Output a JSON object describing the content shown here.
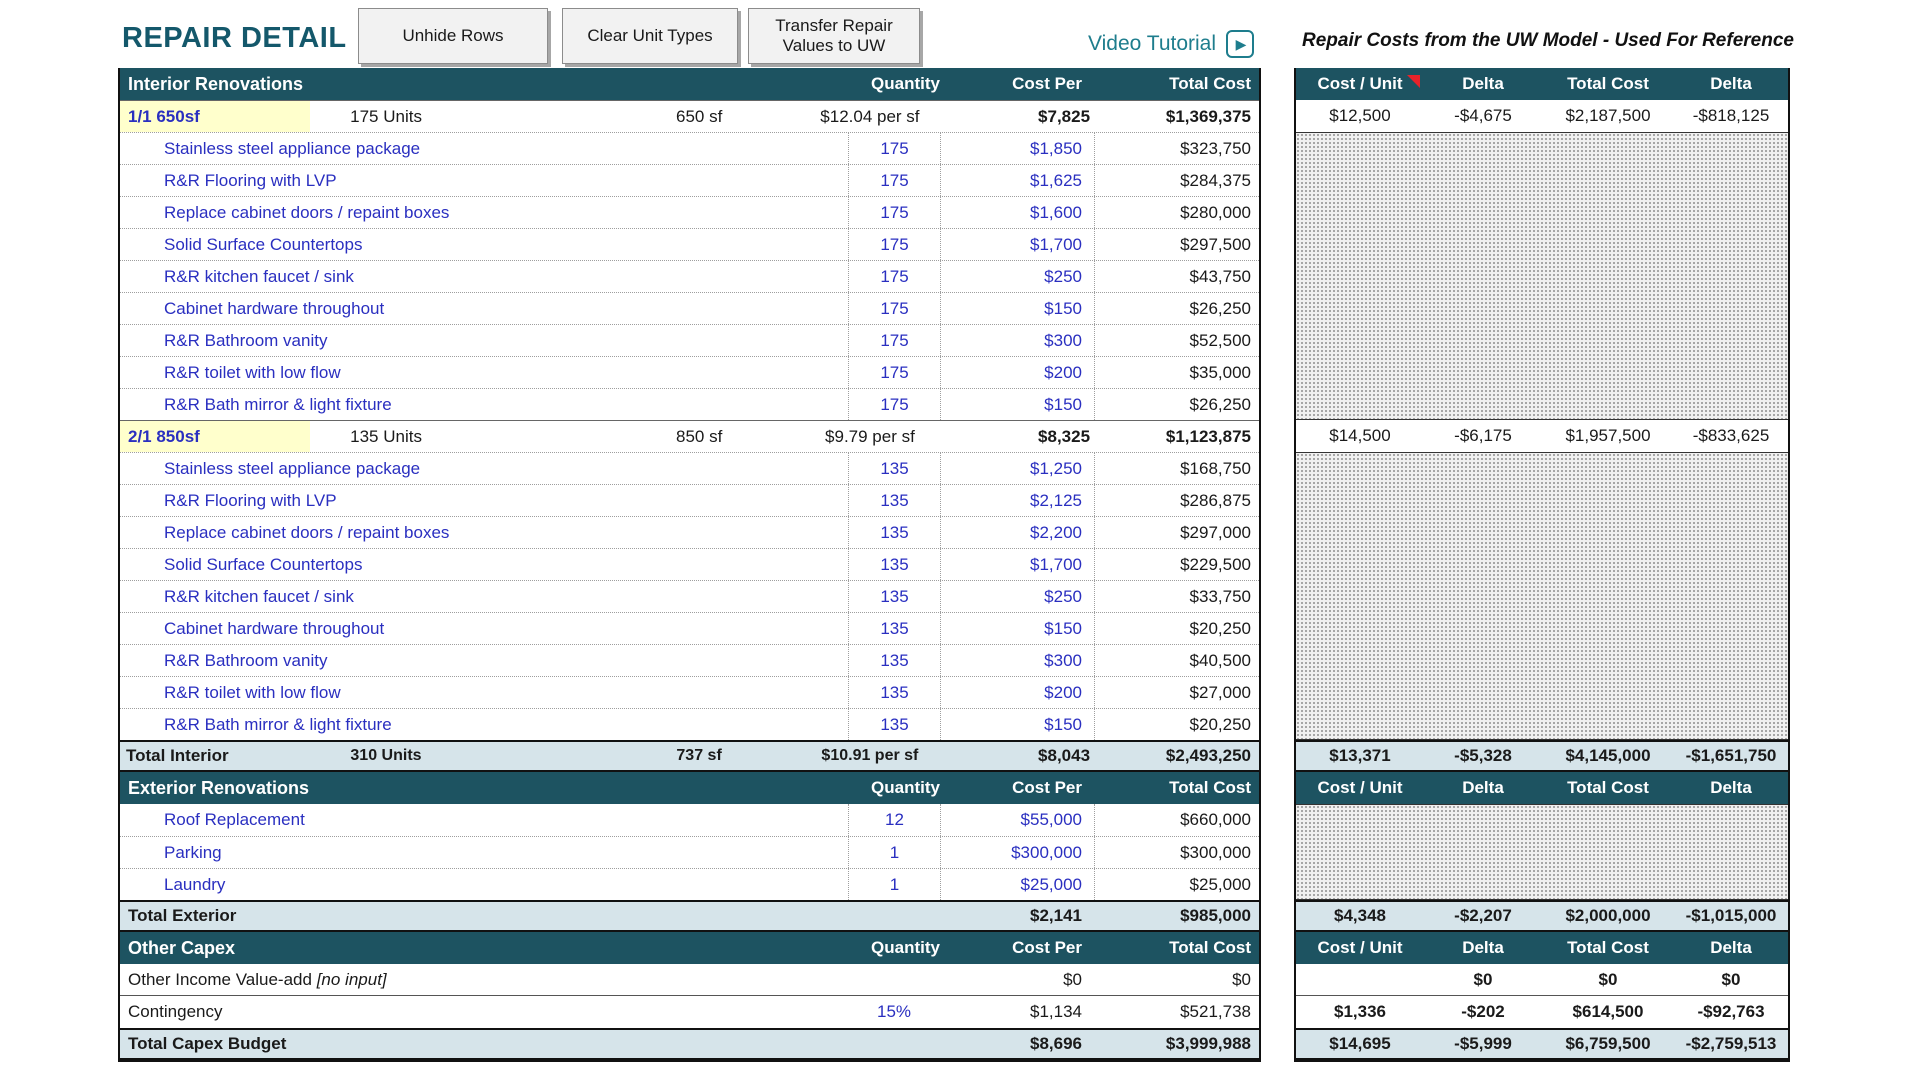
{
  "title": "REPAIR DETAIL",
  "buttons": {
    "unhide": "Unhide Rows",
    "clear": "Clear Unit Types",
    "transfer": "Transfer Repair Values to UW"
  },
  "video_tutorial": {
    "label": "Video Tutorial",
    "play_glyph": "▶"
  },
  "reference_note": "Repair Costs from the UW Model - Used For Reference",
  "ref_columns": {
    "cost_unit": "Cost / Unit",
    "delta": "Delta",
    "total_cost": "Total Cost",
    "delta2": "Delta"
  },
  "interior": {
    "header": {
      "title": "Interior Renovations",
      "quantity": "Quantity",
      "cost_per": "Cost Per",
      "total_cost": "Total Cost"
    },
    "groups": [
      {
        "name": "1/1 650sf",
        "units": "175 Units",
        "sf": "650 sf",
        "per_sf": "$12.04 per sf",
        "cost_per": "$7,825",
        "total_cost": "$1,369,375",
        "ref": {
          "cost_unit": "$12,500",
          "delta": "-$4,675",
          "total_cost": "$2,187,500",
          "delta2": "-$818,125"
        },
        "items": [
          {
            "label": "Stainless steel appliance package",
            "qty": "175",
            "cost_per": "$1,850",
            "total": "$323,750"
          },
          {
            "label": "R&R Flooring with LVP",
            "qty": "175",
            "cost_per": "$1,625",
            "total": "$284,375"
          },
          {
            "label": "Replace cabinet doors / repaint boxes",
            "qty": "175",
            "cost_per": "$1,600",
            "total": "$280,000"
          },
          {
            "label": "Solid Surface Countertops",
            "qty": "175",
            "cost_per": "$1,700",
            "total": "$297,500"
          },
          {
            "label": "R&R kitchen faucet / sink",
            "qty": "175",
            "cost_per": "$250",
            "total": "$43,750"
          },
          {
            "label": "Cabinet hardware throughout",
            "qty": "175",
            "cost_per": "$150",
            "total": "$26,250"
          },
          {
            "label": "R&R Bathroom vanity",
            "qty": "175",
            "cost_per": "$300",
            "total": "$52,500"
          },
          {
            "label": "R&R toilet with low flow",
            "qty": "175",
            "cost_per": "$200",
            "total": "$35,000"
          },
          {
            "label": "R&R Bath mirror & light fixture",
            "qty": "175",
            "cost_per": "$150",
            "total": "$26,250"
          }
        ]
      },
      {
        "name": "2/1 850sf",
        "units": "135 Units",
        "sf": "850 sf",
        "per_sf": "$9.79 per sf",
        "cost_per": "$8,325",
        "total_cost": "$1,123,875",
        "ref": {
          "cost_unit": "$14,500",
          "delta": "-$6,175",
          "total_cost": "$1,957,500",
          "delta2": "-$833,625"
        },
        "items": [
          {
            "label": "Stainless steel appliance package",
            "qty": "135",
            "cost_per": "$1,250",
            "total": "$168,750"
          },
          {
            "label": "R&R Flooring with LVP",
            "qty": "135",
            "cost_per": "$2,125",
            "total": "$286,875"
          },
          {
            "label": "Replace cabinet doors / repaint boxes",
            "qty": "135",
            "cost_per": "$2,200",
            "total": "$297,000"
          },
          {
            "label": "Solid Surface Countertops",
            "qty": "135",
            "cost_per": "$1,700",
            "total": "$229,500"
          },
          {
            "label": "R&R kitchen faucet / sink",
            "qty": "135",
            "cost_per": "$250",
            "total": "$33,750"
          },
          {
            "label": "Cabinet hardware throughout",
            "qty": "135",
            "cost_per": "$150",
            "total": "$20,250"
          },
          {
            "label": "R&R Bathroom vanity",
            "qty": "135",
            "cost_per": "$300",
            "total": "$40,500"
          },
          {
            "label": "R&R toilet with low flow",
            "qty": "135",
            "cost_per": "$200",
            "total": "$27,000"
          },
          {
            "label": "R&R Bath mirror & light fixture",
            "qty": "135",
            "cost_per": "$150",
            "total": "$20,250"
          }
        ]
      }
    ],
    "total": {
      "label": "Total Interior",
      "units": "310 Units",
      "sf": "737 sf",
      "per_sf": "$10.91 per sf",
      "cost_per": "$8,043",
      "total_cost": "$2,493,250",
      "ref": {
        "cost_unit": "$13,371",
        "delta": "-$5,328",
        "total_cost": "$4,145,000",
        "delta2": "-$1,651,750"
      }
    }
  },
  "exterior": {
    "header": {
      "title": "Exterior Renovations",
      "quantity": "Quantity",
      "cost_per": "Cost Per",
      "total_cost": "Total Cost"
    },
    "items": [
      {
        "label": "Roof Replacement",
        "qty": "12",
        "cost_per": "$55,000",
        "total": "$660,000"
      },
      {
        "label": "Parking",
        "qty": "1",
        "cost_per": "$300,000",
        "total": "$300,000"
      },
      {
        "label": "Laundry",
        "qty": "1",
        "cost_per": "$25,000",
        "total": "$25,000"
      }
    ],
    "total": {
      "label": "Total Exterior",
      "cost_per": "$2,141",
      "total_cost": "$985,000",
      "ref": {
        "cost_unit": "$4,348",
        "delta": "-$2,207",
        "total_cost": "$2,000,000",
        "delta2": "-$1,015,000"
      }
    }
  },
  "other": {
    "header": {
      "title": "Other Capex",
      "quantity": "Quantity",
      "cost_per": "Cost Per",
      "total_cost": "Total Cost"
    },
    "rows": [
      {
        "label": "Other Income Value-add",
        "note": "[no input]",
        "qty": "",
        "cost_per": "$0",
        "total": "$0",
        "ref": {
          "cost_unit": "",
          "delta": "$0",
          "total_cost": "$0",
          "delta2": "$0"
        }
      },
      {
        "label": "Contingency",
        "note": "",
        "qty": "15%",
        "cost_per": "$1,134",
        "total": "$521,738",
        "ref": {
          "cost_unit": "$1,336",
          "delta": "-$202",
          "total_cost": "$614,500",
          "delta2": "-$92,763"
        }
      }
    ],
    "total": {
      "label": "Total Capex Budget",
      "cost_per": "$8,696",
      "total_cost": "$3,999,988",
      "ref": {
        "cost_unit": "$14,695",
        "delta": "-$5,999",
        "total_cost": "$6,759,500",
        "delta2": "-$2,759,513"
      }
    }
  },
  "colors": {
    "header_bg": "#1d5361",
    "total_bg": "#d6e4ea",
    "input_blue": "#2a2fc0",
    "group_yellow": "#ffffcc",
    "link_teal": "#1e7d8d",
    "flag_red": "#e8232a"
  }
}
